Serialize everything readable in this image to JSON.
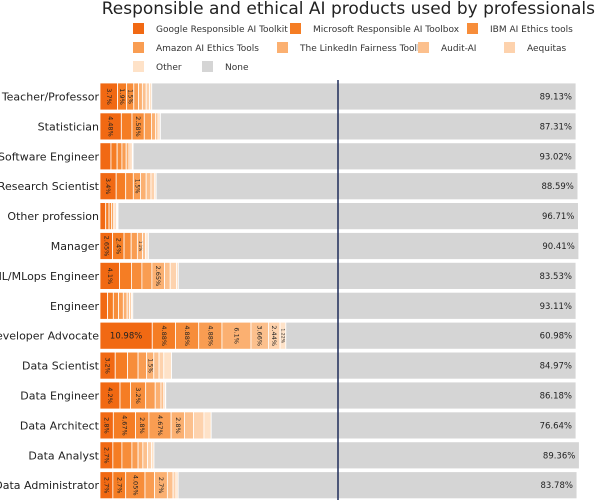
{
  "chart_data": {
    "type": "bar",
    "orientation": "horizontal",
    "stacked": true,
    "title": "Responsible and ethical AI products used by professionals",
    "xlabel": "",
    "ylabel": "",
    "xlim": [
      0,
      100
    ],
    "legend_position": "top",
    "reference_line_x": 50,
    "categories": [
      "Teacher/Professor",
      "Statistician",
      "Software Engineer",
      "Research Scientist",
      "Other profession",
      "Manager",
      "ML/MLops Engineer",
      "Engineer",
      "Developer Advocate",
      "Data Scientist",
      "Data Engineer",
      "Data Architect",
      "Data Analyst",
      "Data Administrator"
    ],
    "series": [
      {
        "name": "Google Responsible AI Toolkit",
        "color": "#f16913",
        "values": [
          3.7,
          4.48,
          2.3,
          3.4,
          1.2,
          2.65,
          4.1,
          1.6,
          10.98,
          3.2,
          4.2,
          2.8,
          2.7,
          2.7
        ]
      },
      {
        "name": "Microsoft Responsible AI Toolbox",
        "color": "#f57d24",
        "values": [
          1.9,
          2.24,
          1.3,
          2.0,
          0.7,
          2.4,
          2.5,
          1.2,
          4.88,
          2.6,
          2.2,
          4.67,
          1.9,
          2.7
        ]
      },
      {
        "name": "IBM AI Ethics tools",
        "color": "#f78d3a",
        "values": [
          1.5,
          2.58,
          1.0,
          1.6,
          0.5,
          1.5,
          2.2,
          1.1,
          4.88,
          2.2,
          3.2,
          2.8,
          2.1,
          4.05
        ]
      },
      {
        "name": "Amazon AI Ethics Tools",
        "color": "#f99d52",
        "values": [
          1.0,
          1.5,
          0.9,
          1.5,
          0.4,
          1.3,
          2.1,
          1.0,
          4.88,
          1.8,
          2.0,
          4.67,
          1.3,
          2.0
        ]
      },
      {
        "name": "The LinkedIn Fairness Toolkit",
        "color": "#fbb071",
        "values": [
          0.8,
          0.9,
          0.6,
          1.2,
          0.3,
          1.1,
          2.65,
          0.8,
          6.1,
          1.5,
          1.2,
          2.8,
          1.0,
          2.7
        ]
      },
      {
        "name": "Audit-AI",
        "color": "#fcc08d",
        "values": [
          0.8,
          0.5,
          0.4,
          1.0,
          0.3,
          0.6,
          1.2,
          0.5,
          3.66,
          1.1,
          0.6,
          1.9,
          1.0,
          1.2
        ]
      },
      {
        "name": "Aequitas",
        "color": "#fdd2ad",
        "values": [
          0.7,
          0.39,
          0.3,
          0.8,
          0.2,
          0.3,
          1.3,
          0.4,
          2.44,
          1.0,
          0.3,
          2.2,
          0.8,
          0.6
        ]
      },
      {
        "name": "Other",
        "color": "#fee2c8",
        "values": [
          0.47,
          0.1,
          0.16,
          0.31,
          0.19,
          0.33,
          0.41,
          0.29,
          1.22,
          1.63,
          0.12,
          1.52,
          0.54,
          0.47
        ]
      },
      {
        "name": "None",
        "color": "#d5d5d5",
        "values": [
          89.13,
          87.31,
          93.02,
          88.59,
          96.71,
          90.41,
          83.53,
          93.11,
          60.98,
          84.97,
          86.18,
          76.64,
          89.36,
          83.78
        ]
      }
    ],
    "segment_labels": [
      [
        "3.7%",
        "1.9%",
        "1.5%",
        "",
        "",
        "",
        "",
        "",
        "89.13%"
      ],
      [
        "4.48%",
        "",
        "2.58%",
        "",
        "",
        "",
        "",
        "",
        "87.31%"
      ],
      [
        "",
        "",
        "",
        "",
        "",
        "",
        "",
        "",
        "93.02%"
      ],
      [
        "3.4%",
        "",
        "",
        "1.5%",
        "",
        "",
        "",
        "",
        "88.59%"
      ],
      [
        "",
        "",
        "",
        "",
        "",
        "",
        "",
        "",
        "96.71%"
      ],
      [
        "2.65%",
        "2.4%",
        "",
        "",
        "1.1%",
        "",
        "",
        "",
        "90.41%"
      ],
      [
        "4.1%",
        "",
        "",
        "",
        "2.65%",
        "",
        "",
        "",
        "83.53%"
      ],
      [
        "",
        "",
        "",
        "",
        "",
        "",
        "",
        "",
        "93.11%"
      ],
      [
        "10.98%",
        "4.88%",
        "4.88%",
        "4.88%",
        "6.1%",
        "3.66%",
        "2.44%",
        "1.22%",
        "60.98%"
      ],
      [
        "3.2%",
        "",
        "",
        "",
        "1.5%",
        "",
        "",
        "",
        "84.97%"
      ],
      [
        "4.2%",
        "",
        "3.2%",
        "",
        "",
        "",
        "",
        "",
        "86.18%"
      ],
      [
        "2.8%",
        "4.67%",
        "2.8%",
        "4.67%",
        "2.8%",
        "",
        "",
        "",
        "76.64%"
      ],
      [
        "2.7%",
        "",
        "",
        "",
        "",
        "",
        "",
        "",
        "89.36%"
      ],
      [
        "2.7%",
        "2.7%",
        "4.05%",
        "",
        "2.7%",
        "",
        "",
        "",
        "83.78%"
      ]
    ]
  }
}
